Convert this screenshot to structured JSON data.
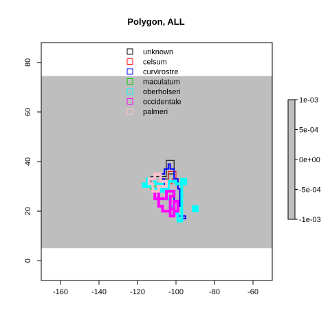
{
  "chart_data": {
    "type": "heatmap",
    "title": "Polygon, ALL",
    "xlabel": "",
    "ylabel": "",
    "xlim": [
      -170,
      -50
    ],
    "ylim": [
      -8,
      88
    ],
    "x_ticks": [
      -160,
      -140,
      -120,
      -100,
      -80,
      -60
    ],
    "y_ticks": [
      0,
      20,
      40,
      60,
      80
    ],
    "background_band": {
      "lon": [
        -170,
        -50
      ],
      "lat": [
        5,
        74.5
      ],
      "color": "#bebebe"
    },
    "legend_position": "top-center",
    "series": [
      {
        "name": "unknown",
        "color": "#000000",
        "line_width": 1,
        "polygon": [
          [
            -105,
            40.5
          ],
          [
            -101,
            40.5
          ],
          [
            -101,
            35
          ],
          [
            -104,
            35
          ],
          [
            -104,
            33
          ],
          [
            -107,
            33
          ],
          [
            -107,
            31
          ],
          [
            -113,
            31
          ],
          [
            -113,
            34
          ],
          [
            -105,
            34
          ],
          [
            -105,
            40.5
          ]
        ]
      },
      {
        "name": "celsum",
        "color": "#ff0000",
        "line_width": 1,
        "polygon": [
          [
            -104,
            36
          ],
          [
            -100,
            36
          ],
          [
            -100,
            33
          ],
          [
            -102,
            33
          ],
          [
            -102,
            31
          ],
          [
            -104,
            31
          ],
          [
            -104,
            36
          ]
        ]
      },
      {
        "name": "curvirostre",
        "color": "#0000ff",
        "line_width": 2,
        "polygon": [
          [
            -104,
            39
          ],
          [
            -103,
            39
          ],
          [
            -103,
            37
          ],
          [
            -101,
            37
          ],
          [
            -101,
            33
          ],
          [
            -99,
            33
          ],
          [
            -99,
            29
          ],
          [
            -98,
            29
          ],
          [
            -98,
            22
          ],
          [
            -97,
            22
          ],
          [
            -97,
            18
          ],
          [
            -95,
            18
          ],
          [
            -95,
            17
          ],
          [
            -97,
            17
          ],
          [
            -97,
            18
          ],
          [
            -99,
            18
          ],
          [
            -99,
            24
          ],
          [
            -101,
            24
          ],
          [
            -101,
            28
          ],
          [
            -104,
            28
          ],
          [
            -104,
            30
          ],
          [
            -106,
            30
          ],
          [
            -106,
            33
          ],
          [
            -108,
            33
          ],
          [
            -108,
            35
          ],
          [
            -106,
            35
          ],
          [
            -106,
            37
          ],
          [
            -104,
            37
          ],
          [
            -104,
            39
          ]
        ]
      },
      {
        "name": "maculatum",
        "color": "#00cd00",
        "line_width": 2,
        "polygon": [
          [
            -113,
            31
          ],
          [
            -111,
            31
          ],
          [
            -111,
            29
          ],
          [
            -113,
            29
          ],
          [
            -113,
            31
          ]
        ]
      },
      {
        "name": "oberholseri",
        "color": "#00ffff",
        "line_width": 4,
        "polygon": [
          [
            -117,
            31
          ],
          [
            -115,
            31
          ],
          [
            -115,
            33
          ],
          [
            -111,
            33
          ],
          [
            -111,
            31
          ],
          [
            -107,
            31
          ],
          [
            -107,
            29
          ],
          [
            -105,
            29
          ],
          [
            -105,
            25
          ],
          [
            -103,
            25
          ],
          [
            -103,
            22
          ],
          [
            -101,
            22
          ],
          [
            -101,
            19
          ],
          [
            -99,
            19
          ],
          [
            -99,
            16
          ],
          [
            -97,
            16
          ],
          [
            -97,
            32
          ],
          [
            -95,
            32
          ],
          [
            -95,
            31
          ],
          [
            -100,
            31
          ],
          [
            -100,
            32
          ],
          [
            -104,
            32
          ],
          [
            -104,
            28
          ],
          [
            -108,
            28
          ],
          [
            -108,
            29
          ],
          [
            -112,
            29
          ],
          [
            -112,
            30
          ],
          [
            -117,
            30
          ],
          [
            -117,
            31
          ]
        ]
      },
      {
        "name": "occidentale",
        "color": "#ff00ff",
        "line_width": 4,
        "polygon": [
          [
            -111,
            25
          ],
          [
            -109,
            25
          ],
          [
            -109,
            22
          ],
          [
            -107,
            22
          ],
          [
            -107,
            20
          ],
          [
            -103,
            20
          ],
          [
            -103,
            18
          ],
          [
            -101,
            18
          ],
          [
            -101,
            20
          ],
          [
            -99,
            20
          ],
          [
            -99,
            24
          ],
          [
            -101,
            24
          ],
          [
            -101,
            21
          ],
          [
            -103,
            21
          ],
          [
            -103,
            26
          ],
          [
            -101,
            26
          ],
          [
            -101,
            28
          ],
          [
            -105,
            28
          ],
          [
            -105,
            25
          ],
          [
            -109,
            25
          ],
          [
            -109,
            28
          ],
          [
            -111,
            28
          ],
          [
            -111,
            25
          ]
        ]
      },
      {
        "name": "palmeri",
        "color": "#ffc0cb",
        "line_width": 4,
        "polygon": [
          [
            -114,
            33
          ],
          [
            -111,
            33
          ],
          [
            -111,
            35
          ],
          [
            -108,
            35
          ],
          [
            -108,
            32
          ],
          [
            -105,
            32
          ],
          [
            -105,
            30
          ],
          [
            -109,
            30
          ],
          [
            -109,
            28
          ],
          [
            -112,
            28
          ],
          [
            -112,
            31
          ],
          [
            -114,
            31
          ],
          [
            -114,
            33
          ]
        ]
      }
    ],
    "extra_marks": [
      {
        "series": "oberholseri",
        "square": [
          -90,
          21
        ]
      },
      {
        "series": "oberholseri",
        "square": [
          -96,
          32
        ]
      }
    ],
    "colorbar": {
      "ticks": [
        "1e-03",
        "5e-04",
        "0e+00",
        "-5e-04",
        "-1e-03"
      ],
      "fill": "#bebebe"
    }
  }
}
